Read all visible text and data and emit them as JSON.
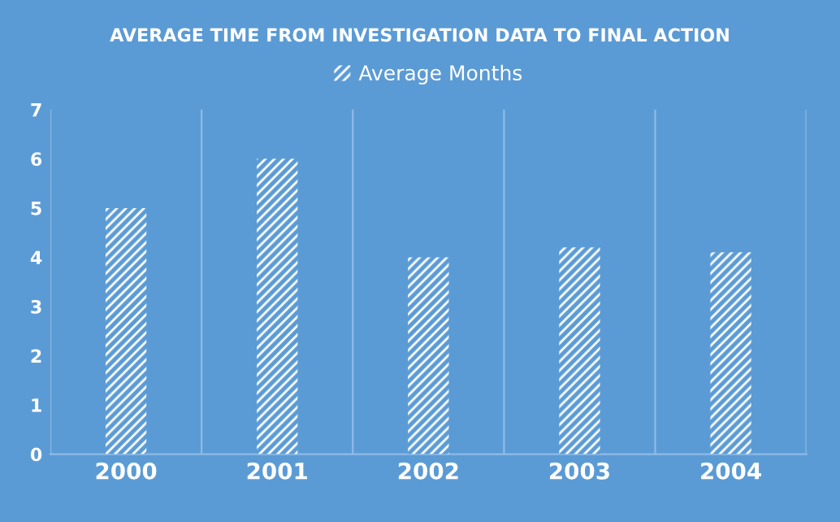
{
  "chart_data": {
    "type": "bar",
    "title": "AVERAGE TIME FROM INVESTIGATION DATA TO FINAL ACTION",
    "categories": [
      "2000",
      "2001",
      "2002",
      "2003",
      "2004"
    ],
    "series": [
      {
        "name": "Average Months",
        "color": "#ffffff",
        "values": [
          5,
          6,
          4,
          4.2,
          4.1
        ]
      }
    ],
    "ylim": [
      0,
      7
    ],
    "yticks": [
      0,
      1,
      2,
      3,
      4,
      5,
      6,
      7
    ],
    "grid": "x",
    "legend": "top"
  }
}
